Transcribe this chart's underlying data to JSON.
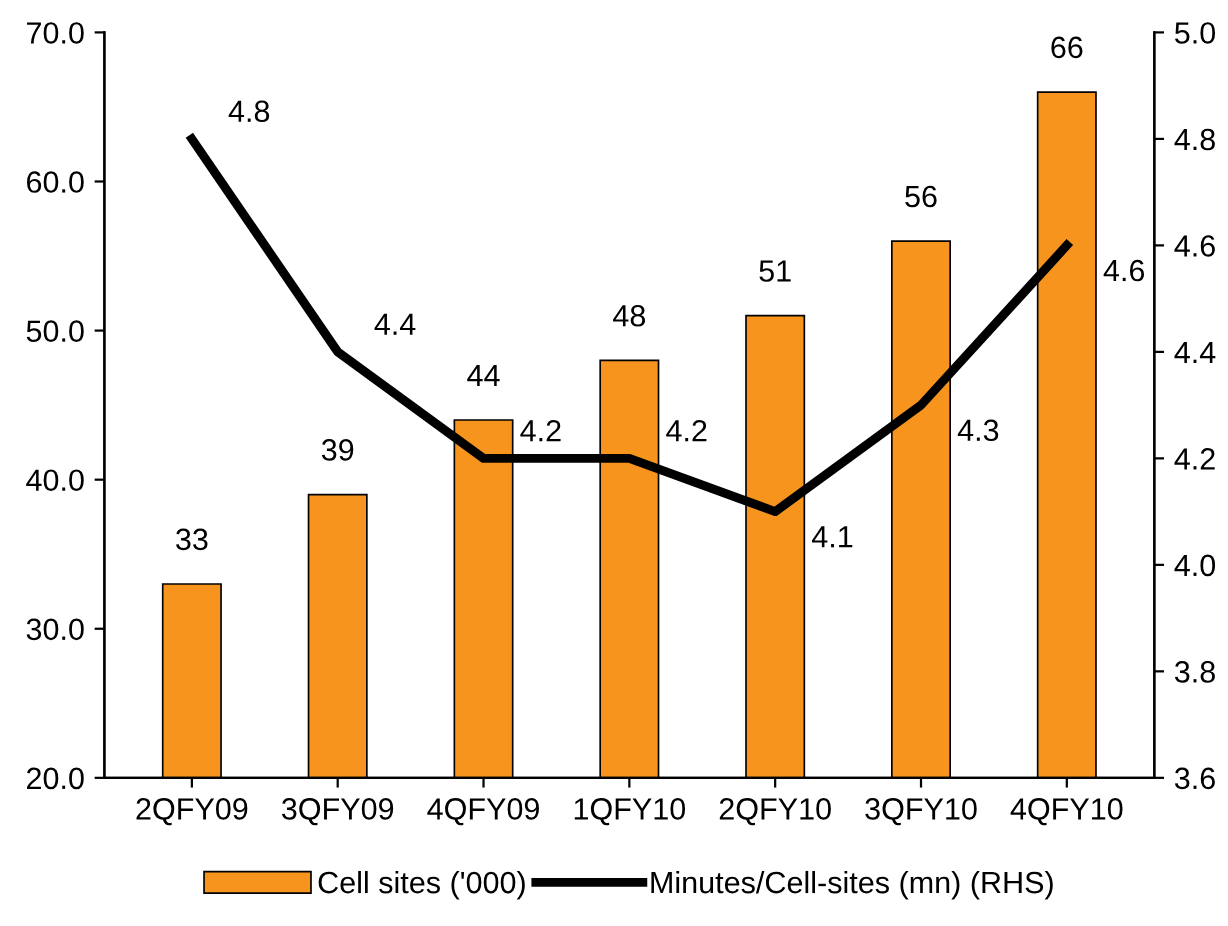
{
  "chart_data": {
    "type": "bar",
    "categories": [
      "2QFY09",
      "3QFY09",
      "4QFY09",
      "1QFY10",
      "2QFY10",
      "3QFY10",
      "4QFY10"
    ],
    "series": [
      {
        "name": "Cell sites ('000)",
        "color": "#f7941d",
        "values": [
          33,
          39,
          44,
          48,
          51,
          56,
          66
        ]
      },
      {
        "name": "Minutes/Cell-sites (mn) (RHS)",
        "type": "line",
        "axis": "y2",
        "color": "#000000",
        "values": [
          4.8,
          4.4,
          4.2,
          4.2,
          4.1,
          4.3,
          4.6
        ]
      }
    ],
    "ylim": [
      20,
      70
    ],
    "yticks": [
      {
        "value": 20,
        "label": "20.0"
      },
      {
        "value": 30,
        "label": "30.0"
      },
      {
        "value": 40,
        "label": "40.0"
      },
      {
        "value": 50,
        "label": "50.0"
      },
      {
        "value": 60,
        "label": "60.0"
      },
      {
        "value": 70,
        "label": "70.0"
      }
    ],
    "y2lim": [
      3.6,
      5.0
    ],
    "y2ticks": [
      {
        "value": 3.6,
        "label": "3.6"
      },
      {
        "value": 3.8,
        "label": "3.8"
      },
      {
        "value": 4.0,
        "label": "4.0"
      },
      {
        "value": 4.2,
        "label": "4.2"
      },
      {
        "value": 4.4,
        "label": "4.4"
      },
      {
        "value": 4.6,
        "label": "4.6"
      },
      {
        "value": 4.8,
        "label": "4.8"
      },
      {
        "value": 5.0,
        "label": "5.0"
      }
    ],
    "data_labels": true,
    "legend": "bottom",
    "grid": false,
    "marker": "none",
    "line_style": "solid"
  }
}
